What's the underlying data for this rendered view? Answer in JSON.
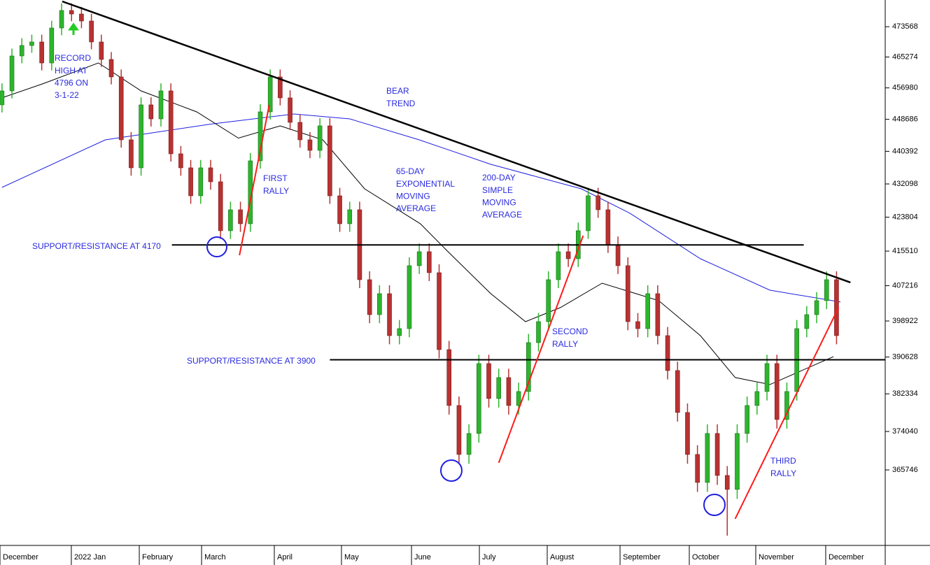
{
  "chart_data": {
    "type": "candlestick",
    "log": true,
    "xlim": [
      -0.2,
      88.9
    ],
    "ylim": [
      350000,
      481000
    ],
    "yticks": [
      473568,
      465274,
      456980,
      448686,
      440392,
      432098,
      423804,
      415510,
      407216,
      398922,
      390628,
      382334,
      374040,
      365746
    ],
    "xticks": [
      {
        "value": -0.2,
        "label": "December"
      },
      {
        "value": 6.98,
        "label": "2022 Jan"
      },
      {
        "value": 13.82,
        "label": "February"
      },
      {
        "value": 20.09,
        "label": "March"
      },
      {
        "value": 27.41,
        "label": "April"
      },
      {
        "value": 34.17,
        "label": "May"
      },
      {
        "value": 41.22,
        "label": "June"
      },
      {
        "value": 48.05,
        "label": "July"
      },
      {
        "value": 54.88,
        "label": "August"
      },
      {
        "value": 62.21,
        "label": "September"
      },
      {
        "value": 69.18,
        "label": "October"
      },
      {
        "value": 75.87,
        "label": "November"
      },
      {
        "value": 82.91,
        "label": "December"
      }
    ],
    "up_color": "#2db52d",
    "down_color": "#b83232",
    "open": [
      452480,
      456180,
      465570,
      468420,
      469380,
      463670,
      473220,
      478070,
      477090,
      475150,
      469380,
      464620,
      459910,
      443350,
      436180,
      452480,
      448800,
      456180,
      439750,
      436180,
      429120,
      436180,
      432640,
      420470,
      425640,
      422190,
      437960,
      450640,
      459910,
      454330,
      447890,
      443350,
      440640,
      446980,
      429120,
      422190,
      425640,
      408640,
      400400,
      405320,
      395530,
      397150,
      411990,
      415360,
      410310,
      392320,
      379740,
      369060,
      373600,
      389140,
      381290,
      385980,
      379740,
      382850,
      393920,
      398770,
      408640,
      415360,
      413670,
      420470,
      429120,
      425640,
      417060,
      411990,
      398770,
      397150,
      405320,
      395530,
      387560,
      378200,
      369060,
      363090,
      373600,
      364570,
      361620,
      373600,
      379740,
      382850,
      389140,
      376660,
      382850,
      397150,
      400400,
      403680,
      408640
    ],
    "high": [
      458180,
      467570,
      470420,
      471380,
      471380,
      475220,
      480070,
      480070,
      479090,
      477150,
      471380,
      466620,
      461910,
      445350,
      454480,
      454480,
      458180,
      458180,
      441750,
      438180,
      438180,
      438180,
      434640,
      427640,
      427640,
      439960,
      452640,
      461910,
      461910,
      456330,
      449890,
      445350,
      448980,
      448980,
      431120,
      427640,
      427640,
      410640,
      407320,
      407320,
      399150,
      413990,
      417360,
      417360,
      412310,
      394320,
      381740,
      375600,
      391140,
      391140,
      387980,
      387980,
      384850,
      395920,
      400770,
      410640,
      417360,
      417360,
      422470,
      431120,
      431120,
      427640,
      419060,
      413990,
      400770,
      407320,
      407320,
      397530,
      389560,
      380200,
      371060,
      375600,
      375600,
      366570,
      375600,
      381740,
      384850,
      391140,
      391140,
      384850,
      399150,
      402400,
      405680,
      410640,
      410640
    ],
    "low": [
      450480,
      454180,
      463570,
      466420,
      461670,
      461670,
      471220,
      475090,
      473150,
      467380,
      462620,
      457910,
      441350,
      434180,
      434180,
      446800,
      446800,
      437750,
      434180,
      427120,
      427120,
      430640,
      418470,
      418470,
      420190,
      420190,
      435960,
      448640,
      452330,
      445890,
      441350,
      438640,
      438640,
      427120,
      420190,
      420190,
      406640,
      398400,
      398400,
      393530,
      393530,
      395150,
      409990,
      408310,
      390320,
      377740,
      367060,
      367060,
      371600,
      379290,
      379290,
      377740,
      377740,
      380850,
      391920,
      396770,
      406640,
      411670,
      411670,
      418470,
      423640,
      415060,
      409990,
      396770,
      395150,
      395150,
      393530,
      385560,
      376200,
      367060,
      361090,
      361090,
      362570,
      352000,
      359620,
      371600,
      377740,
      380850,
      374660,
      374660,
      380850,
      395150,
      398400,
      401680,
      393530
    ],
    "close": [
      456180,
      465570,
      468420,
      469380,
      463670,
      473220,
      478070,
      477090,
      475150,
      469380,
      464620,
      459910,
      443350,
      436180,
      452480,
      448800,
      456180,
      439750,
      436180,
      429120,
      436180,
      432640,
      420470,
      425640,
      422190,
      437960,
      450640,
      459910,
      454330,
      447890,
      443350,
      440640,
      446980,
      429120,
      422190,
      425640,
      408640,
      400400,
      405320,
      395530,
      397150,
      411990,
      415360,
      410310,
      392320,
      379740,
      369060,
      373600,
      389140,
      381290,
      385980,
      379740,
      382850,
      393920,
      398770,
      408640,
      415360,
      413670,
      420470,
      429120,
      425640,
      417060,
      411990,
      398770,
      397150,
      405320,
      395530,
      387560,
      378200,
      369060,
      363090,
      373600,
      364570,
      361620,
      373600,
      379740,
      382850,
      389140,
      376660,
      382850,
      397150,
      400400,
      403680,
      408640,
      395530
    ],
    "lines": [
      {
        "color": "#1f1fe0",
        "x": [
          0,
          10.4,
          21,
          29.4,
          35,
          42,
          49.2,
          58.3,
          63.2,
          70.3,
          77.3,
          84.4
        ],
        "values": [
          431230,
          443350,
          447430,
          450090,
          448800,
          443350,
          437070,
          430880,
          424780,
          413670,
          406150,
          403350
        ]
      },
      {
        "color": "#000000",
        "x": [
          0,
          4.1,
          9.7,
          14,
          19.6,
          23.8,
          28,
          32.3,
          36.5,
          42.1,
          44.9,
          49.2,
          52.7,
          56.2,
          60.4,
          66.1,
          70.3,
          73.8,
          77.3,
          83.7
        ],
        "values": [
          454330,
          458050,
          463670,
          456180,
          450640,
          443800,
          446980,
          443350,
          430880,
          422190,
          415360,
          405320,
          398770,
          402040,
          407810,
          403680,
          395530,
          385980,
          384410,
          390730
        ]
      }
    ],
    "trendlines": [
      {
        "color": "#000000",
        "width": 2.5,
        "x": [
          6.06,
          85.4
        ],
        "values": [
          480610,
          407980
        ]
      },
      {
        "color": "#000000",
        "width": 2,
        "x": [
          17.1,
          80.7
        ],
        "values": [
          417000,
          417000
        ]
      },
      {
        "color": "#000000",
        "width": 2,
        "x": [
          33,
          88.9
        ],
        "values": [
          390000,
          390000
        ]
      },
      {
        "color": "#ff1a1a",
        "width": 2,
        "x": [
          23.9,
          26.9
        ],
        "values": [
          414510,
          452480
        ]
      },
      {
        "color": "#ff1a1a",
        "width": 2,
        "x": [
          50,
          58.5
        ],
        "values": [
          367260,
          419270
        ]
      },
      {
        "color": "#ff1a1a",
        "width": 2,
        "x": [
          73.8,
          84.2
        ],
        "values": [
          355480,
          402040
        ]
      }
    ],
    "annotations": [
      {
        "lines": [
          "RECORD",
          "HIGH AT",
          "4796 ON",
          "3-1-22"
        ]
      },
      {
        "lines": [
          "BEAR",
          "TREND"
        ]
      },
      {
        "lines": [
          "FIRST",
          "RALLY"
        ]
      },
      {
        "lines": [
          "65-DAY",
          "EXPONENTIAL",
          "MOVING",
          "AVERAGE"
        ]
      },
      {
        "lines": [
          "200-DAY",
          "SIMPLE",
          "MOVING",
          "AVERAGE"
        ]
      },
      {
        "lines": [
          "SECOND",
          "RALLY"
        ]
      },
      {
        "lines": [
          "THIRD",
          "RALLY"
        ]
      },
      {
        "lines": [
          "SUPPORT/RESISTANCE AT 4170"
        ]
      },
      {
        "lines": [
          "SUPPORT/RESISTANCE AT 3900"
        ]
      }
    ]
  }
}
